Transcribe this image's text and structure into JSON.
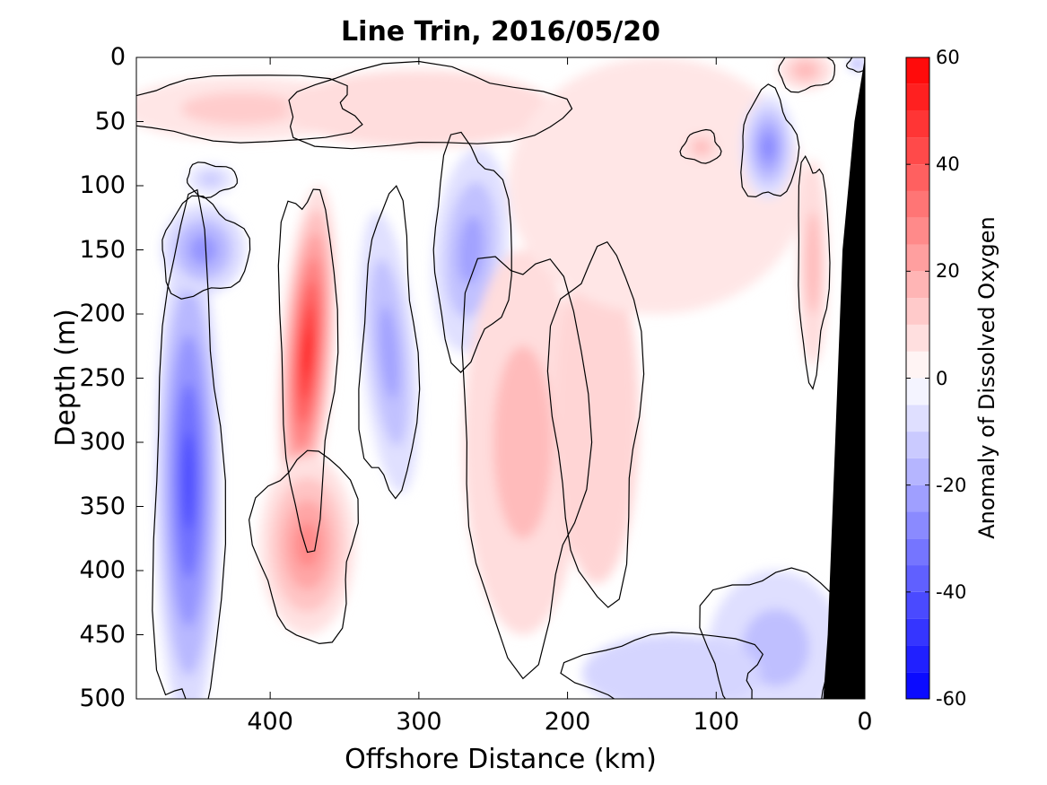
{
  "chart_data": {
    "type": "heatmap",
    "title": "Line Trin, 2016/05/20",
    "xlabel": "Offshore Distance (km)",
    "ylabel": "Depth (m)",
    "x_axis": {
      "range": [
        490,
        0
      ],
      "reversed": true,
      "ticks": [
        400,
        300,
        200,
        100,
        0
      ],
      "tick_labels": [
        "400",
        "300",
        "200",
        "100",
        "0"
      ]
    },
    "y_axis": {
      "range": [
        0,
        500
      ],
      "reversed": true,
      "ticks": [
        0,
        50,
        100,
        150,
        200,
        250,
        300,
        350,
        400,
        450,
        500
      ],
      "tick_labels": [
        "0",
        "50",
        "100",
        "150",
        "200",
        "250",
        "300",
        "350",
        "400",
        "450",
        "500"
      ]
    },
    "colorbar": {
      "label": "Anomaly of Dissolved Oxygen",
      "range": [
        -60,
        60
      ],
      "levels": [
        -60,
        -55,
        -50,
        -45,
        -40,
        -35,
        -30,
        -25,
        -20,
        -15,
        -10,
        -5,
        0,
        5,
        10,
        15,
        20,
        25,
        30,
        35,
        40,
        45,
        50,
        55,
        60
      ],
      "ticks": [
        60,
        40,
        20,
        0,
        -20,
        -40,
        -60
      ],
      "tick_labels": [
        "60",
        "40",
        "20",
        "0",
        "-20",
        "-40",
        "-60"
      ],
      "colormap": "blue-white-red",
      "colors": {
        "negative": "#0000ff",
        "zero": "#ffffff",
        "positive": "#ff0000"
      }
    },
    "data_extent_x": [
      470,
      0
    ],
    "zero_contour_color": "#000000",
    "bathymetry_fill": "#000000",
    "bathymetry": [
      [
        0,
        0
      ],
      [
        7,
        50
      ],
      [
        15,
        150
      ],
      [
        20,
        300
      ],
      [
        25,
        450
      ],
      [
        28,
        500
      ]
    ],
    "features": [
      {
        "x": 455,
        "y": 330,
        "value": -42,
        "rx": 22,
        "ry": 190,
        "rot": 0
      },
      {
        "x": 445,
        "y": 150,
        "value": -25,
        "rx": 28,
        "ry": 35,
        "rot": 0
      },
      {
        "x": 440,
        "y": 95,
        "value": -12,
        "rx": 16,
        "ry": 12,
        "rot": 0
      },
      {
        "x": 375,
        "y": 230,
        "value": 52,
        "rx": 18,
        "ry": 130,
        "rot": 4
      },
      {
        "x": 375,
        "y": 380,
        "value": 28,
        "rx": 32,
        "ry": 70,
        "rot": 0
      },
      {
        "x": 420,
        "y": 40,
        "value": 12,
        "rx": 80,
        "ry": 25,
        "rot": 0
      },
      {
        "x": 320,
        "y": 230,
        "value": -22,
        "rx": 18,
        "ry": 110,
        "rot": -5
      },
      {
        "x": 300,
        "y": 40,
        "value": 8,
        "rx": 90,
        "ry": 30,
        "rot": 0
      },
      {
        "x": 265,
        "y": 150,
        "value": -22,
        "rx": 25,
        "ry": 80,
        "rot": 5
      },
      {
        "x": 230,
        "y": 300,
        "value": 16,
        "rx": 40,
        "ry": 150,
        "rot": 0
      },
      {
        "x": 180,
        "y": 280,
        "value": 10,
        "rx": 28,
        "ry": 130,
        "rot": 0
      },
      {
        "x": 140,
        "y": 100,
        "value": 6,
        "rx": 100,
        "ry": 100,
        "rot": 0
      },
      {
        "x": 110,
        "y": 70,
        "value": 16,
        "rx": 12,
        "ry": 12,
        "rot": 0
      },
      {
        "x": 65,
        "y": 70,
        "value": -28,
        "rx": 18,
        "ry": 40,
        "rot": 0
      },
      {
        "x": 40,
        "y": 10,
        "value": 16,
        "rx": 18,
        "ry": 15,
        "rot": 0
      },
      {
        "x": 35,
        "y": 160,
        "value": 16,
        "rx": 10,
        "ry": 80,
        "rot": 0
      },
      {
        "x": 60,
        "y": 460,
        "value": -15,
        "rx": 45,
        "ry": 60,
        "rot": 0
      },
      {
        "x": 130,
        "y": 480,
        "value": -10,
        "rx": 60,
        "ry": 30,
        "rot": 0
      },
      {
        "x": 5,
        "y": 5,
        "value": -25,
        "rx": 6,
        "ry": 6,
        "rot": 0
      }
    ]
  }
}
